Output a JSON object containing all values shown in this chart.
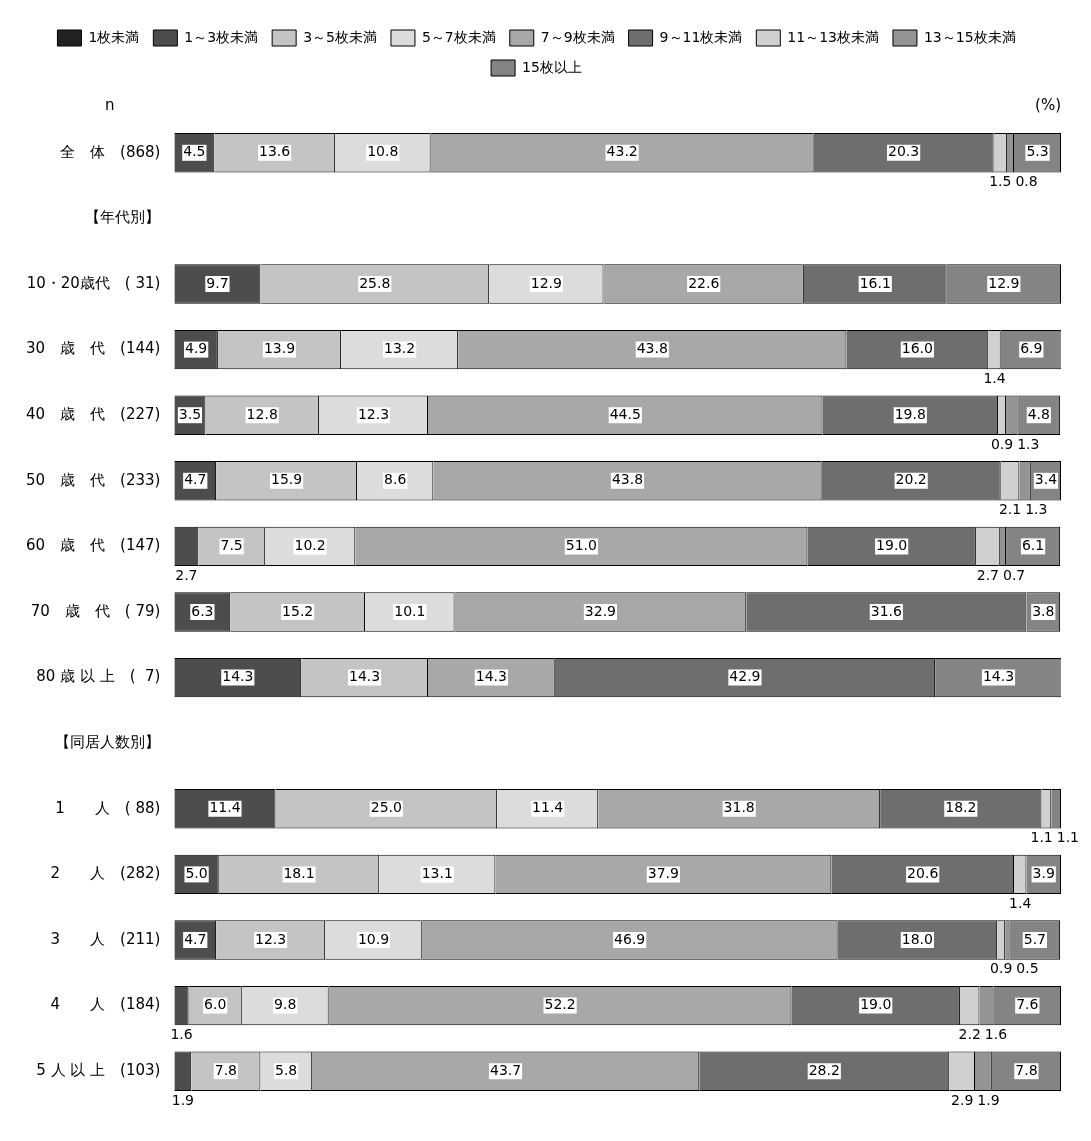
{
  "chart_data": {
    "type": "bar",
    "orientation": "horizontal",
    "stacked": true,
    "grid": false,
    "legend": "top",
    "tick_labels": "y",
    "xlim": [
      0,
      100
    ],
    "annotations": [
      "n",
      "(%)"
    ],
    "categories": [
      "全　体　(868)",
      "【年代別】",
      "10・20歳代　( 31)",
      "30　歳　代　(144)",
      "40　歳　代　(227)",
      "50　歳　代　(233)",
      "60　歳　代　(147)",
      "70　歳　代　( 79)",
      "80 歳 以 上　(  7)",
      "【同居人数別】",
      "1　　人　( 88)",
      "2　　人　(282)",
      "3　　人　(211)",
      "4　　人　(184)",
      "5 人 以 上　(103)"
    ],
    "series": [
      {
        "name": "1枚未満",
        "color": "#222222",
        "values": [
          null,
          null,
          null,
          null,
          null,
          null,
          null,
          null,
          null,
          null,
          null,
          null,
          null,
          null,
          null
        ],
        "value_labels": [
          null,
          null,
          null,
          null,
          null,
          null,
          null,
          null,
          null,
          null,
          null,
          null,
          null,
          null,
          null
        ]
      },
      {
        "name": "1～3枚未満",
        "color": "#4d4d4d",
        "values": [
          4.5,
          null,
          9.7,
          4.9,
          3.5,
          4.7,
          2.7,
          6.3,
          14.3,
          null,
          11.4,
          5.0,
          4.7,
          1.6,
          1.9
        ],
        "value_labels": [
          "4.5",
          null,
          "9.7",
          "4.9",
          "3.5",
          "4.7",
          "2.7",
          "6.3",
          "14.3",
          null,
          "11.4",
          "5.0",
          "4.7",
          "1.6",
          "1.9"
        ]
      },
      {
        "name": "3～5枚未満",
        "color": "#c4c4c4",
        "values": [
          13.6,
          null,
          25.8,
          13.9,
          12.8,
          15.9,
          7.5,
          15.2,
          14.3,
          null,
          25.0,
          18.1,
          12.3,
          6.0,
          7.8
        ],
        "value_labels": [
          "13.6",
          null,
          "25.8",
          "13.9",
          "12.8",
          "15.9",
          "7.5",
          "15.2",
          "14.3",
          null,
          "25.0",
          "18.1",
          "12.3",
          "6.0",
          "7.8"
        ]
      },
      {
        "name": "5～7枚未満",
        "color": "#dcdcdc",
        "values": [
          10.8,
          null,
          12.9,
          13.2,
          12.3,
          8.6,
          10.2,
          10.1,
          null,
          null,
          11.4,
          13.1,
          10.9,
          9.8,
          5.8
        ],
        "value_labels": [
          "10.8",
          null,
          "12.9",
          "13.2",
          "12.3",
          "8.6",
          "10.2",
          "10.1",
          null,
          null,
          "11.4",
          "13.1",
          "10.9",
          "9.8",
          "5.8"
        ]
      },
      {
        "name": "7～9枚未満",
        "color": "#a8a8a8",
        "values": [
          43.2,
          null,
          22.6,
          43.8,
          44.5,
          43.8,
          51.0,
          32.9,
          14.3,
          null,
          31.8,
          37.9,
          46.9,
          52.2,
          43.7
        ],
        "value_labels": [
          "43.2",
          null,
          "22.6",
          "43.8",
          "44.5",
          "43.8",
          "51.0",
          "32.9",
          "14.3",
          null,
          "31.8",
          "37.9",
          "46.9",
          "52.2",
          "43.7"
        ]
      },
      {
        "name": "9～11枚未満",
        "color": "#6e6e6e",
        "values": [
          20.3,
          null,
          16.1,
          16.0,
          19.8,
          20.2,
          19.0,
          31.6,
          42.9,
          null,
          18.2,
          20.6,
          18.0,
          19.0,
          28.2
        ],
        "value_labels": [
          "20.3",
          null,
          "16.1",
          "16.0",
          "19.8",
          "20.2",
          "19.0",
          "31.6",
          "42.9",
          null,
          "18.2",
          "20.6",
          "18.0",
          "19.0",
          "28.2"
        ]
      },
      {
        "name": "11～13枚未満",
        "color": "#d0d0d0",
        "values": [
          1.5,
          null,
          null,
          1.4,
          0.9,
          2.1,
          2.7,
          null,
          null,
          null,
          1.1,
          1.4,
          0.9,
          2.2,
          2.9
        ],
        "value_labels": [
          "1.5",
          null,
          null,
          "1.4",
          "0.9",
          "2.1",
          "2.7",
          null,
          null,
          null,
          "1.1",
          "1.4",
          "0.9",
          "2.2",
          "2.9"
        ]
      },
      {
        "name": "13～15枚未満",
        "color": "#939393",
        "values": [
          0.8,
          null,
          null,
          null,
          1.3,
          1.3,
          0.7,
          null,
          null,
          null,
          null,
          null,
          0.5,
          1.6,
          1.9
        ],
        "value_labels": [
          "0.8",
          null,
          null,
          null,
          "1.3",
          "1.3",
          "0.7",
          null,
          null,
          null,
          null,
          null,
          "0.5",
          "1.6",
          "1.9"
        ]
      },
      {
        "name": "15枚以上",
        "color": "#848484",
        "values": [
          5.3,
          null,
          12.9,
          6.9,
          4.8,
          3.4,
          6.1,
          3.8,
          14.3,
          null,
          1.1,
          3.9,
          5.7,
          7.6,
          7.8
        ],
        "value_labels": [
          "5.3",
          null,
          "12.9",
          "6.9",
          "4.8",
          "3.4",
          "6.1",
          "3.8",
          "14.3",
          null,
          "1.1",
          "3.9",
          "5.7",
          "7.6",
          "7.8"
        ]
      }
    ]
  }
}
